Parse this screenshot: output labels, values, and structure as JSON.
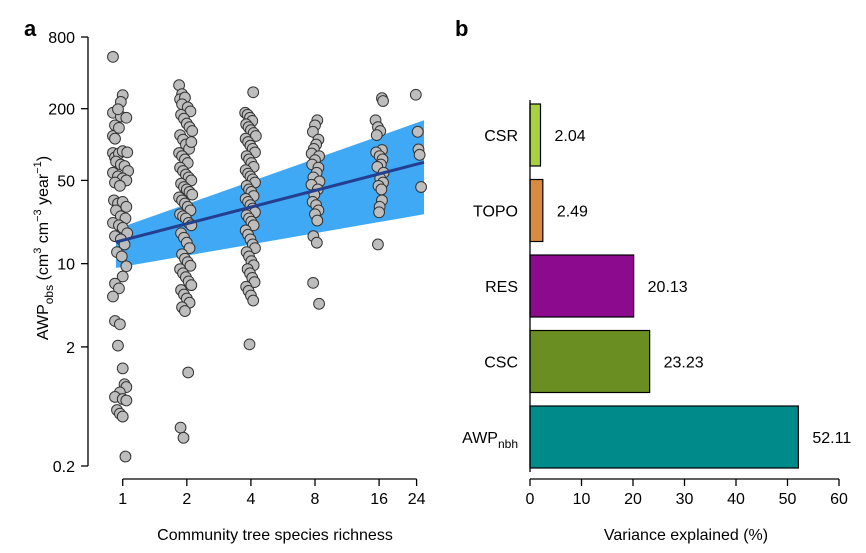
{
  "panel_labels": {
    "a": "a",
    "b": "b"
  },
  "chart_data": [
    {
      "panel": "a",
      "type": "scatter",
      "log_axes": true,
      "xlabel": "Community tree species richness",
      "ylabel": {
        "main": "AWP",
        "sub": "obs",
        "units": " (cm",
        "sup1": "3",
        "mid": " cm",
        "sup2": "−3",
        "tail": " year",
        "sup3": "−1",
        "end": ")"
      },
      "xticks": [
        1,
        2,
        4,
        8,
        16,
        24
      ],
      "xtick_labels": [
        "1",
        "2",
        "4",
        "8",
        "16",
        "24"
      ],
      "yticks": [
        0.2,
        2,
        10,
        50,
        200,
        800
      ],
      "ytick_labels": [
        "0.2",
        "2",
        "10",
        "50",
        "200",
        "800"
      ],
      "xlim": [
        0.93,
        26
      ],
      "ylim": [
        0.2,
        800
      ],
      "point_color": "#bdbdbd",
      "line_color": "#243f8f",
      "band_color": "#3fa9f5",
      "trend": {
        "x": [
          0.93,
          26
        ],
        "y": [
          15.2,
          71
        ],
        "lower": [
          9.2,
          26
        ],
        "upper": [
          19.5,
          160
        ]
      },
      "points": [
        {
          "x": 0.9,
          "y": 545
        },
        {
          "x": 0.9,
          "y": 185
        },
        {
          "x": 0.92,
          "y": 145
        },
        {
          "x": 0.9,
          "y": 118
        },
        {
          "x": 0.92,
          "y": 112
        },
        {
          "x": 0.96,
          "y": 138
        },
        {
          "x": 0.98,
          "y": 172
        },
        {
          "x": 1.0,
          "y": 260
        },
        {
          "x": 0.98,
          "y": 228
        },
        {
          "x": 0.95,
          "y": 198
        },
        {
          "x": 1.04,
          "y": 168
        },
        {
          "x": 0.9,
          "y": 85
        },
        {
          "x": 0.92,
          "y": 78
        },
        {
          "x": 0.96,
          "y": 84
        },
        {
          "x": 1.0,
          "y": 88
        },
        {
          "x": 1.05,
          "y": 86
        },
        {
          "x": 0.93,
          "y": 72
        },
        {
          "x": 0.98,
          "y": 68
        },
        {
          "x": 1.02,
          "y": 66
        },
        {
          "x": 1.06,
          "y": 60
        },
        {
          "x": 0.9,
          "y": 58
        },
        {
          "x": 0.95,
          "y": 54
        },
        {
          "x": 1.0,
          "y": 52
        },
        {
          "x": 1.04,
          "y": 50
        },
        {
          "x": 0.92,
          "y": 48
        },
        {
          "x": 0.97,
          "y": 45
        },
        {
          "x": 0.91,
          "y": 34
        },
        {
          "x": 0.95,
          "y": 32
        },
        {
          "x": 1.0,
          "y": 33
        },
        {
          "x": 1.04,
          "y": 30
        },
        {
          "x": 0.93,
          "y": 28
        },
        {
          "x": 0.98,
          "y": 25
        },
        {
          "x": 1.03,
          "y": 24
        },
        {
          "x": 0.9,
          "y": 22
        },
        {
          "x": 0.96,
          "y": 21
        },
        {
          "x": 1.0,
          "y": 20
        },
        {
          "x": 1.05,
          "y": 18
        },
        {
          "x": 0.92,
          "y": 17
        },
        {
          "x": 0.98,
          "y": 16
        },
        {
          "x": 1.02,
          "y": 14.5
        },
        {
          "x": 0.94,
          "y": 12.5
        },
        {
          "x": 0.99,
          "y": 11.5
        },
        {
          "x": 1.04,
          "y": 9.5
        },
        {
          "x": 1.0,
          "y": 7.8
        },
        {
          "x": 0.92,
          "y": 6.8
        },
        {
          "x": 0.96,
          "y": 6.2
        },
        {
          "x": 0.9,
          "y": 5.3
        },
        {
          "x": 0.92,
          "y": 3.3
        },
        {
          "x": 0.97,
          "y": 3.1
        },
        {
          "x": 0.95,
          "y": 2.05
        },
        {
          "x": 1.0,
          "y": 1.32
        },
        {
          "x": 1.02,
          "y": 0.97
        },
        {
          "x": 1.04,
          "y": 0.92
        },
        {
          "x": 0.97,
          "y": 0.83
        },
        {
          "x": 0.92,
          "y": 0.76
        },
        {
          "x": 1.0,
          "y": 0.73
        },
        {
          "x": 1.04,
          "y": 0.71
        },
        {
          "x": 0.94,
          "y": 0.59
        },
        {
          "x": 0.97,
          "y": 0.55
        },
        {
          "x": 1.0,
          "y": 0.52
        },
        {
          "x": 1.03,
          "y": 0.24
        },
        {
          "x": 1.84,
          "y": 315
        },
        {
          "x": 1.9,
          "y": 265
        },
        {
          "x": 1.86,
          "y": 240
        },
        {
          "x": 1.96,
          "y": 248
        },
        {
          "x": 1.9,
          "y": 218
        },
        {
          "x": 2.02,
          "y": 205
        },
        {
          "x": 2.08,
          "y": 190
        },
        {
          "x": 1.88,
          "y": 178
        },
        {
          "x": 1.94,
          "y": 165
        },
        {
          "x": 2.0,
          "y": 150
        },
        {
          "x": 2.06,
          "y": 140
        },
        {
          "x": 2.12,
          "y": 130
        },
        {
          "x": 1.86,
          "y": 120
        },
        {
          "x": 1.92,
          "y": 110
        },
        {
          "x": 1.98,
          "y": 100
        },
        {
          "x": 2.05,
          "y": 92
        },
        {
          "x": 2.1,
          "y": 105
        },
        {
          "x": 1.84,
          "y": 85
        },
        {
          "x": 1.9,
          "y": 80
        },
        {
          "x": 1.96,
          "y": 75
        },
        {
          "x": 2.02,
          "y": 70
        },
        {
          "x": 1.86,
          "y": 64
        },
        {
          "x": 1.92,
          "y": 60
        },
        {
          "x": 1.98,
          "y": 56
        },
        {
          "x": 2.04,
          "y": 53
        },
        {
          "x": 2.1,
          "y": 50
        },
        {
          "x": 1.88,
          "y": 47
        },
        {
          "x": 1.94,
          "y": 44
        },
        {
          "x": 2.0,
          "y": 42
        },
        {
          "x": 2.06,
          "y": 40
        },
        {
          "x": 2.12,
          "y": 38
        },
        {
          "x": 1.84,
          "y": 36
        },
        {
          "x": 1.9,
          "y": 34
        },
        {
          "x": 1.96,
          "y": 32
        },
        {
          "x": 2.02,
          "y": 30
        },
        {
          "x": 2.08,
          "y": 28
        },
        {
          "x": 1.86,
          "y": 26
        },
        {
          "x": 1.92,
          "y": 25
        },
        {
          "x": 1.98,
          "y": 24
        },
        {
          "x": 2.04,
          "y": 22
        },
        {
          "x": 2.1,
          "y": 21
        },
        {
          "x": 1.88,
          "y": 18
        },
        {
          "x": 1.94,
          "y": 16.5
        },
        {
          "x": 2.0,
          "y": 15
        },
        {
          "x": 2.06,
          "y": 13.5
        },
        {
          "x": 1.9,
          "y": 12
        },
        {
          "x": 1.96,
          "y": 11
        },
        {
          "x": 2.02,
          "y": 10.3
        },
        {
          "x": 2.08,
          "y": 9.6
        },
        {
          "x": 1.86,
          "y": 9
        },
        {
          "x": 1.92,
          "y": 8.3
        },
        {
          "x": 1.98,
          "y": 7.7
        },
        {
          "x": 2.04,
          "y": 7.1
        },
        {
          "x": 2.1,
          "y": 6.6
        },
        {
          "x": 1.88,
          "y": 6
        },
        {
          "x": 1.94,
          "y": 5.5
        },
        {
          "x": 2.0,
          "y": 5.1
        },
        {
          "x": 2.06,
          "y": 4.7
        },
        {
          "x": 1.9,
          "y": 4.3
        },
        {
          "x": 1.96,
          "y": 4.0
        },
        {
          "x": 2.03,
          "y": 1.22
        },
        {
          "x": 1.87,
          "y": 0.42
        },
        {
          "x": 1.93,
          "y": 0.345
        },
        {
          "x": 4.1,
          "y": 275
        },
        {
          "x": 3.76,
          "y": 185
        },
        {
          "x": 3.86,
          "y": 178
        },
        {
          "x": 3.96,
          "y": 168
        },
        {
          "x": 4.06,
          "y": 158
        },
        {
          "x": 3.8,
          "y": 148
        },
        {
          "x": 3.9,
          "y": 140
        },
        {
          "x": 4.0,
          "y": 132
        },
        {
          "x": 4.12,
          "y": 125
        },
        {
          "x": 4.22,
          "y": 118
        },
        {
          "x": 3.78,
          "y": 112
        },
        {
          "x": 3.88,
          "y": 105
        },
        {
          "x": 3.98,
          "y": 98
        },
        {
          "x": 4.08,
          "y": 92
        },
        {
          "x": 4.18,
          "y": 86
        },
        {
          "x": 3.82,
          "y": 80
        },
        {
          "x": 3.92,
          "y": 75
        },
        {
          "x": 4.02,
          "y": 70
        },
        {
          "x": 4.12,
          "y": 65
        },
        {
          "x": 3.78,
          "y": 61
        },
        {
          "x": 3.88,
          "y": 57
        },
        {
          "x": 3.98,
          "y": 54
        },
        {
          "x": 4.08,
          "y": 51
        },
        {
          "x": 4.18,
          "y": 48
        },
        {
          "x": 3.82,
          "y": 45
        },
        {
          "x": 3.92,
          "y": 42
        },
        {
          "x": 4.02,
          "y": 40
        },
        {
          "x": 4.12,
          "y": 37
        },
        {
          "x": 3.78,
          "y": 35
        },
        {
          "x": 3.88,
          "y": 33
        },
        {
          "x": 3.98,
          "y": 31
        },
        {
          "x": 4.08,
          "y": 29
        },
        {
          "x": 4.18,
          "y": 27
        },
        {
          "x": 3.82,
          "y": 25.5
        },
        {
          "x": 3.92,
          "y": 24
        },
        {
          "x": 4.02,
          "y": 22.5
        },
        {
          "x": 4.12,
          "y": 21
        },
        {
          "x": 3.78,
          "y": 19
        },
        {
          "x": 3.88,
          "y": 17.5
        },
        {
          "x": 3.98,
          "y": 16
        },
        {
          "x": 4.08,
          "y": 14.5
        },
        {
          "x": 4.18,
          "y": 13.5
        },
        {
          "x": 3.82,
          "y": 12.5
        },
        {
          "x": 3.92,
          "y": 11.5
        },
        {
          "x": 4.02,
          "y": 10.5
        },
        {
          "x": 4.12,
          "y": 9.7
        },
        {
          "x": 3.86,
          "y": 9
        },
        {
          "x": 3.96,
          "y": 8.3
        },
        {
          "x": 4.06,
          "y": 7.6
        },
        {
          "x": 4.16,
          "y": 7
        },
        {
          "x": 3.8,
          "y": 6.4
        },
        {
          "x": 3.9,
          "y": 5.9
        },
        {
          "x": 4.0,
          "y": 5.4
        },
        {
          "x": 4.1,
          "y": 4.9
        },
        {
          "x": 3.94,
          "y": 2.1
        },
        {
          "x": 8.2,
          "y": 160
        },
        {
          "x": 8.0,
          "y": 145
        },
        {
          "x": 7.82,
          "y": 128
        },
        {
          "x": 8.3,
          "y": 110
        },
        {
          "x": 8.1,
          "y": 100
        },
        {
          "x": 7.9,
          "y": 92
        },
        {
          "x": 7.72,
          "y": 84
        },
        {
          "x": 8.36,
          "y": 80
        },
        {
          "x": 8.0,
          "y": 74
        },
        {
          "x": 7.76,
          "y": 68
        },
        {
          "x": 8.3,
          "y": 64
        },
        {
          "x": 8.14,
          "y": 58
        },
        {
          "x": 7.86,
          "y": 53
        },
        {
          "x": 8.4,
          "y": 49
        },
        {
          "x": 7.7,
          "y": 46
        },
        {
          "x": 8.24,
          "y": 42
        },
        {
          "x": 7.94,
          "y": 38
        },
        {
          "x": 7.8,
          "y": 33
        },
        {
          "x": 8.1,
          "y": 31
        },
        {
          "x": 8.3,
          "y": 28
        },
        {
          "x": 8.0,
          "y": 26
        },
        {
          "x": 8.2,
          "y": 23
        },
        {
          "x": 7.86,
          "y": 17
        },
        {
          "x": 8.16,
          "y": 15
        },
        {
          "x": 7.84,
          "y": 6.9
        },
        {
          "x": 8.36,
          "y": 4.6
        },
        {
          "x": 16.5,
          "y": 245
        },
        {
          "x": 16.7,
          "y": 232
        },
        {
          "x": 15.4,
          "y": 160
        },
        {
          "x": 15.8,
          "y": 140
        },
        {
          "x": 16.2,
          "y": 130
        },
        {
          "x": 15.6,
          "y": 120
        },
        {
          "x": 16.5,
          "y": 90
        },
        {
          "x": 15.5,
          "y": 86
        },
        {
          "x": 16.1,
          "y": 80
        },
        {
          "x": 16.6,
          "y": 75
        },
        {
          "x": 16.3,
          "y": 68
        },
        {
          "x": 15.7,
          "y": 65
        },
        {
          "x": 16.8,
          "y": 58
        },
        {
          "x": 16.2,
          "y": 52
        },
        {
          "x": 16.7,
          "y": 48
        },
        {
          "x": 15.9,
          "y": 45
        },
        {
          "x": 16.4,
          "y": 42
        },
        {
          "x": 16.5,
          "y": 34
        },
        {
          "x": 16.1,
          "y": 30
        },
        {
          "x": 16.0,
          "y": 27
        },
        {
          "x": 15.8,
          "y": 14.5
        },
        {
          "x": 23.8,
          "y": 262
        },
        {
          "x": 24.3,
          "y": 128
        },
        {
          "x": 24.5,
          "y": 91
        },
        {
          "x": 24.8,
          "y": 82
        },
        {
          "x": 25.2,
          "y": 44
        }
      ]
    },
    {
      "panel": "b",
      "type": "bar",
      "orientation": "horizontal",
      "xlabel": "Variance explained (%)",
      "xlim": [
        0,
        60
      ],
      "xticks": [
        0,
        10,
        20,
        30,
        40,
        50,
        60
      ],
      "xtick_labels": [
        "0",
        "10",
        "20",
        "30",
        "40",
        "50",
        "60"
      ],
      "bars": [
        {
          "label": "CSR",
          "sub": "",
          "value": 2.04,
          "value_label": "2.04",
          "color": "#a7d13f"
        },
        {
          "label": "TOPO",
          "sub": "",
          "value": 2.49,
          "value_label": "2.49",
          "color": "#d98c3f"
        },
        {
          "label": "RES",
          "sub": "",
          "value": 20.13,
          "value_label": "20.13",
          "color": "#8b0a8e"
        },
        {
          "label": "CSC",
          "sub": "",
          "value": 23.23,
          "value_label": "23.23",
          "color": "#6b8e23"
        },
        {
          "label": "AWP",
          "sub": "nbh",
          "value": 52.11,
          "value_label": "52.11",
          "color": "#008b8b"
        }
      ]
    }
  ]
}
